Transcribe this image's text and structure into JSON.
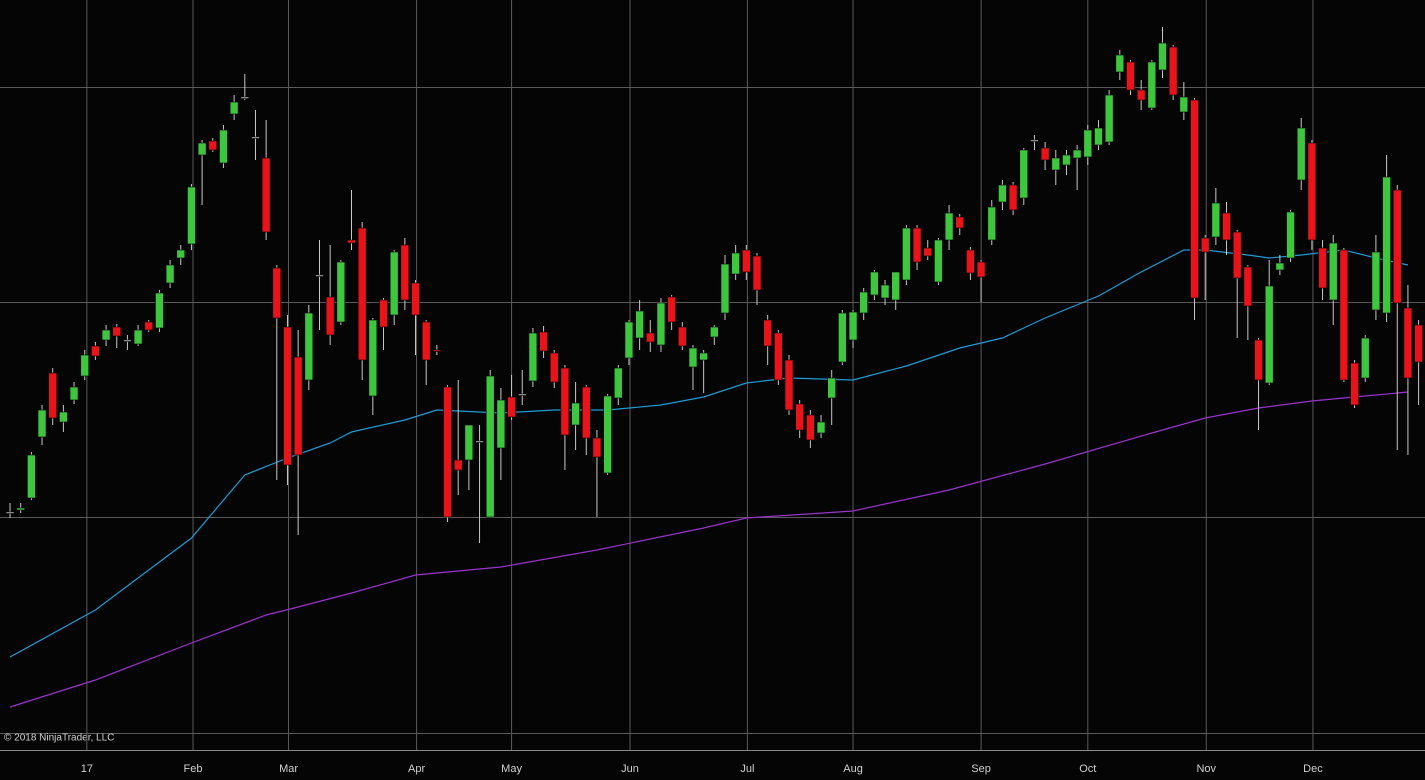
{
  "chart_data": {
    "type": "candlestick",
    "copyright": "© 2018 NinjaTrader, LLC",
    "xlim": [
      -0.94,
      132.6
    ],
    "xticks": [
      {
        "value": 7.2,
        "label": "17"
      },
      {
        "value": 17.15,
        "label": "Feb"
      },
      {
        "value": 26.1,
        "label": "Mar"
      },
      {
        "value": 38.1,
        "label": "Apr"
      },
      {
        "value": 47.0,
        "label": "May"
      },
      {
        "value": 58.1,
        "label": "Jun"
      },
      {
        "value": 69.1,
        "label": "Jul"
      },
      {
        "value": 79.0,
        "label": "Aug"
      },
      {
        "value": 91.0,
        "label": "Sep"
      },
      {
        "value": 101.0,
        "label": "Oct"
      },
      {
        "value": 112.1,
        "label": "Nov"
      },
      {
        "value": 122.1,
        "label": "Dec"
      }
    ],
    "ylim": [
      0,
      750
    ],
    "grid": true,
    "up_color": "#3ec63e",
    "down_color": "#e8141a",
    "wick_color": "#c8c8c8",
    "open": [
      238,
      240,
      252,
      313,
      377,
      328,
      350,
      374,
      404,
      410,
      423,
      410,
      406,
      428,
      422,
      467,
      492,
      506,
      595,
      609,
      587,
      636,
      653,
      613,
      592,
      482,
      423,
      393,
      370,
      475,
      453,
      428,
      510,
      522,
      354,
      450,
      435,
      505,
      467,
      428,
      400,
      363,
      290,
      290,
      309,
      233,
      302,
      353,
      356,
      369,
      418,
      397,
      382,
      325,
      363,
      312,
      277,
      352,
      392,
      412,
      417,
      405,
      453,
      423,
      383,
      390,
      413,
      437,
      476,
      500,
      494,
      430,
      417,
      390,
      346,
      335,
      317,
      352,
      388,
      410,
      437,
      455,
      452,
      450,
      470,
      522,
      502,
      468,
      510,
      533,
      500,
      488,
      510,
      548,
      565,
      552,
      610,
      602,
      580,
      585,
      592,
      593,
      605,
      608,
      678,
      688,
      660,
      642,
      680,
      703,
      638,
      650,
      512,
      513,
      537,
      518,
      483,
      410,
      367,
      480,
      492,
      570,
      607,
      502,
      450,
      500,
      387,
      372,
      440,
      437,
      560,
      442,
      425
    ],
    "high": [
      247,
      247,
      298,
      345,
      382,
      345,
      368,
      400,
      408,
      425,
      426,
      415,
      425,
      430,
      460,
      490,
      505,
      566,
      610,
      612,
      625,
      655,
      676,
      640,
      630,
      485,
      435,
      420,
      445,
      510,
      505,
      490,
      560,
      528,
      432,
      452,
      500,
      512,
      470,
      430,
      405,
      365,
      370,
      325,
      325,
      380,
      362,
      375,
      380,
      422,
      424,
      400,
      385,
      368,
      365,
      320,
      356,
      385,
      430,
      450,
      430,
      452,
      455,
      428,
      405,
      400,
      425,
      495,
      505,
      505,
      497,
      435,
      420,
      395,
      350,
      340,
      335,
      380,
      440,
      440,
      462,
      480,
      470,
      478,
      525,
      525,
      510,
      512,
      545,
      536,
      503,
      490,
      550,
      570,
      568,
      602,
      615,
      608,
      600,
      600,
      605,
      625,
      630,
      660,
      700,
      690,
      670,
      690,
      723,
      705,
      668,
      652,
      515,
      562,
      548,
      520,
      485,
      412,
      490,
      495,
      540,
      632,
      610,
      510,
      515,
      502,
      390,
      415,
      515,
      595,
      565,
      465,
      430
    ],
    "low": [
      232,
      237,
      250,
      305,
      325,
      318,
      346,
      370,
      390,
      404,
      402,
      400,
      404,
      418,
      418,
      462,
      485,
      500,
      545,
      598,
      582,
      630,
      650,
      590,
      510,
      270,
      265,
      215,
      360,
      420,
      405,
      425,
      500,
      370,
      335,
      400,
      425,
      440,
      395,
      365,
      395,
      228,
      255,
      260,
      207,
      233,
      270,
      330,
      345,
      363,
      392,
      362,
      280,
      300,
      295,
      233,
      275,
      345,
      385,
      400,
      398,
      398,
      420,
      400,
      360,
      357,
      405,
      430,
      470,
      470,
      445,
      385,
      365,
      335,
      312,
      302,
      312,
      325,
      385,
      402,
      430,
      450,
      445,
      440,
      465,
      480,
      490,
      465,
      500,
      515,
      470,
      448,
      505,
      540,
      535,
      545,
      600,
      580,
      565,
      575,
      560,
      585,
      600,
      605,
      670,
      655,
      640,
      640,
      672,
      650,
      630,
      430,
      450,
      505,
      495,
      412,
      410,
      320,
      365,
      475,
      488,
      560,
      500,
      450,
      425,
      368,
      342,
      368,
      430,
      428,
      300,
      295,
      345
    ],
    "close": [
      238,
      242,
      295,
      340,
      332,
      338,
      363,
      395,
      394,
      420,
      414,
      410,
      420,
      420,
      457,
      485,
      500,
      563,
      607,
      600,
      620,
      648,
      653,
      613,
      518,
      432,
      285,
      295,
      437,
      475,
      415,
      488,
      507,
      390,
      430,
      423,
      498,
      450,
      435,
      390,
      399,
      233,
      280,
      325,
      309,
      374,
      350,
      333,
      356,
      417,
      399,
      368,
      315,
      347,
      312,
      293,
      354,
      382,
      428,
      439,
      408,
      447,
      428,
      404,
      402,
      397,
      423,
      486,
      497,
      478,
      460,
      404,
      370,
      340,
      320,
      310,
      328,
      372,
      437,
      438,
      458,
      478,
      465,
      478,
      522,
      488,
      494,
      510,
      537,
      522,
      477,
      473,
      543,
      565,
      540,
      600,
      610,
      590,
      592,
      595,
      600,
      620,
      622,
      655,
      695,
      660,
      650,
      688,
      707,
      655,
      653,
      452,
      498,
      547,
      510,
      472,
      444,
      370,
      464,
      487,
      538,
      622,
      510,
      462,
      507,
      370,
      345,
      412,
      498,
      573,
      447,
      372,
      388
    ],
    "lines": [
      {
        "color": "#1e9bd7",
        "x": [
          0,
          8,
          17,
          22,
          26,
          30,
          32,
          37,
          40,
          46,
          51,
          56,
          61,
          65,
          69,
          73,
          79,
          84,
          89,
          93,
          97,
          102,
          106,
          110,
          112,
          116,
          118,
          121,
          125,
          128,
          131
        ],
        "values": [
          93,
          140,
          212,
          275,
          292,
          307,
          318,
          330,
          340,
          337,
          340,
          340,
          345,
          353,
          367,
          372,
          370,
          384,
          402,
          412,
          432,
          454,
          478,
          500,
          500,
          495,
          492,
          495,
          500,
          492,
          485
        ]
      },
      {
        "color": "#9933cc",
        "x": [
          0,
          8,
          17,
          24,
          27,
          32,
          38,
          46,
          55,
          65,
          69,
          79,
          88,
          97,
          107,
          112,
          117,
          122,
          127,
          131
        ],
        "values": [
          43,
          70,
          107,
          135,
          143,
          157,
          175,
          183,
          200,
          222,
          232,
          239,
          260,
          286,
          317,
          332,
          342,
          349,
          354,
          358
        ]
      }
    ]
  }
}
